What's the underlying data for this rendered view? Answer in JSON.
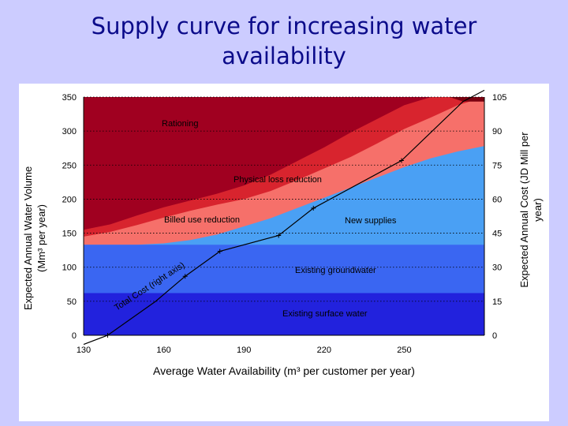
{
  "slide": {
    "title_line1": "Supply curve for increasing water",
    "title_line2": "availability"
  },
  "colors": {
    "slide_bg": "#ccccff",
    "title": "#0b0b8a",
    "rationing": "#a00020",
    "physical_loss": "#d8242e",
    "billed_use": "#f6706a",
    "new_supplies": "#4aa0f4",
    "groundwater": "#3a66f2",
    "surface_water": "#2222dd",
    "top_wedge": "#7a0010",
    "cost_line": "#000000"
  },
  "chart_data": {
    "type": "area",
    "title": "",
    "xlabel": "Average Water Availability (m³ per customer per year)",
    "ylabel_line1": "Expected Annual Water Volume",
    "ylabel_line2": "(Mm³ per year)",
    "y2label_line1": "Expected Annual Cost (JD Mill per",
    "y2label_line2": "year)",
    "xlim": [
      130,
      280
    ],
    "ylim": [
      0,
      350
    ],
    "y2lim": [
      0,
      105
    ],
    "x_ticks": [
      130,
      160,
      190,
      220,
      250
    ],
    "y_ticks": [
      0,
      50,
      100,
      150,
      200,
      250,
      300,
      350
    ],
    "y2_ticks": [
      0,
      15,
      30,
      45,
      60,
      75,
      90,
      105
    ],
    "grid": "dotted-horizontal",
    "layers": [
      {
        "name": "Existing surface water",
        "label": "Existing surface water",
        "x": [
          130,
          280
        ],
        "y": [
          62,
          62
        ]
      },
      {
        "name": "Existing groundwater",
        "label": "Existing groundwater",
        "x": [
          130,
          280
        ],
        "y": [
          133,
          133
        ]
      },
      {
        "name": "New supplies",
        "label": "New supplies",
        "x": [
          130,
          140,
          150,
          160,
          170,
          180,
          190,
          200,
          210,
          220,
          230,
          240,
          250,
          260,
          270,
          280
        ],
        "y": [
          133,
          133,
          133,
          135,
          140,
          148,
          160,
          172,
          187,
          202,
          217,
          232,
          247,
          260,
          270,
          278
        ]
      },
      {
        "name": "Billed use reduction",
        "label": "Billed use reduction",
        "x": [
          130,
          140,
          150,
          160,
          170,
          180,
          190,
          200,
          210,
          220,
          230,
          240,
          250,
          260,
          270,
          280
        ],
        "y": [
          145,
          152,
          162,
          173,
          183,
          192,
          200,
          212,
          228,
          245,
          262,
          282,
          303,
          320,
          338,
          350
        ]
      },
      {
        "name": "Physical loss reduction",
        "label": "Physical loss reduction",
        "x": [
          130,
          140,
          150,
          160,
          170,
          180,
          190,
          200,
          210,
          220,
          230,
          240,
          250,
          260,
          270,
          280
        ],
        "y": [
          155,
          163,
          176,
          188,
          198,
          208,
          220,
          236,
          256,
          276,
          298,
          318,
          338,
          350,
          350,
          350
        ]
      },
      {
        "name": "Rationing",
        "label": "Rationing",
        "x": [
          130,
          280
        ],
        "y": [
          350,
          350
        ]
      }
    ],
    "cost_series": {
      "name": "Total Cost (right axis)",
      "label": "Total Cost (right axis)",
      "x": [
        130,
        139,
        157,
        168,
        181,
        203,
        216,
        249,
        272,
        280
      ],
      "y2": [
        -4,
        0,
        15,
        26,
        37,
        44,
        56,
        77,
        103,
        108
      ],
      "marker_index": [
        1,
        3,
        4,
        5,
        6,
        7
      ]
    }
  }
}
